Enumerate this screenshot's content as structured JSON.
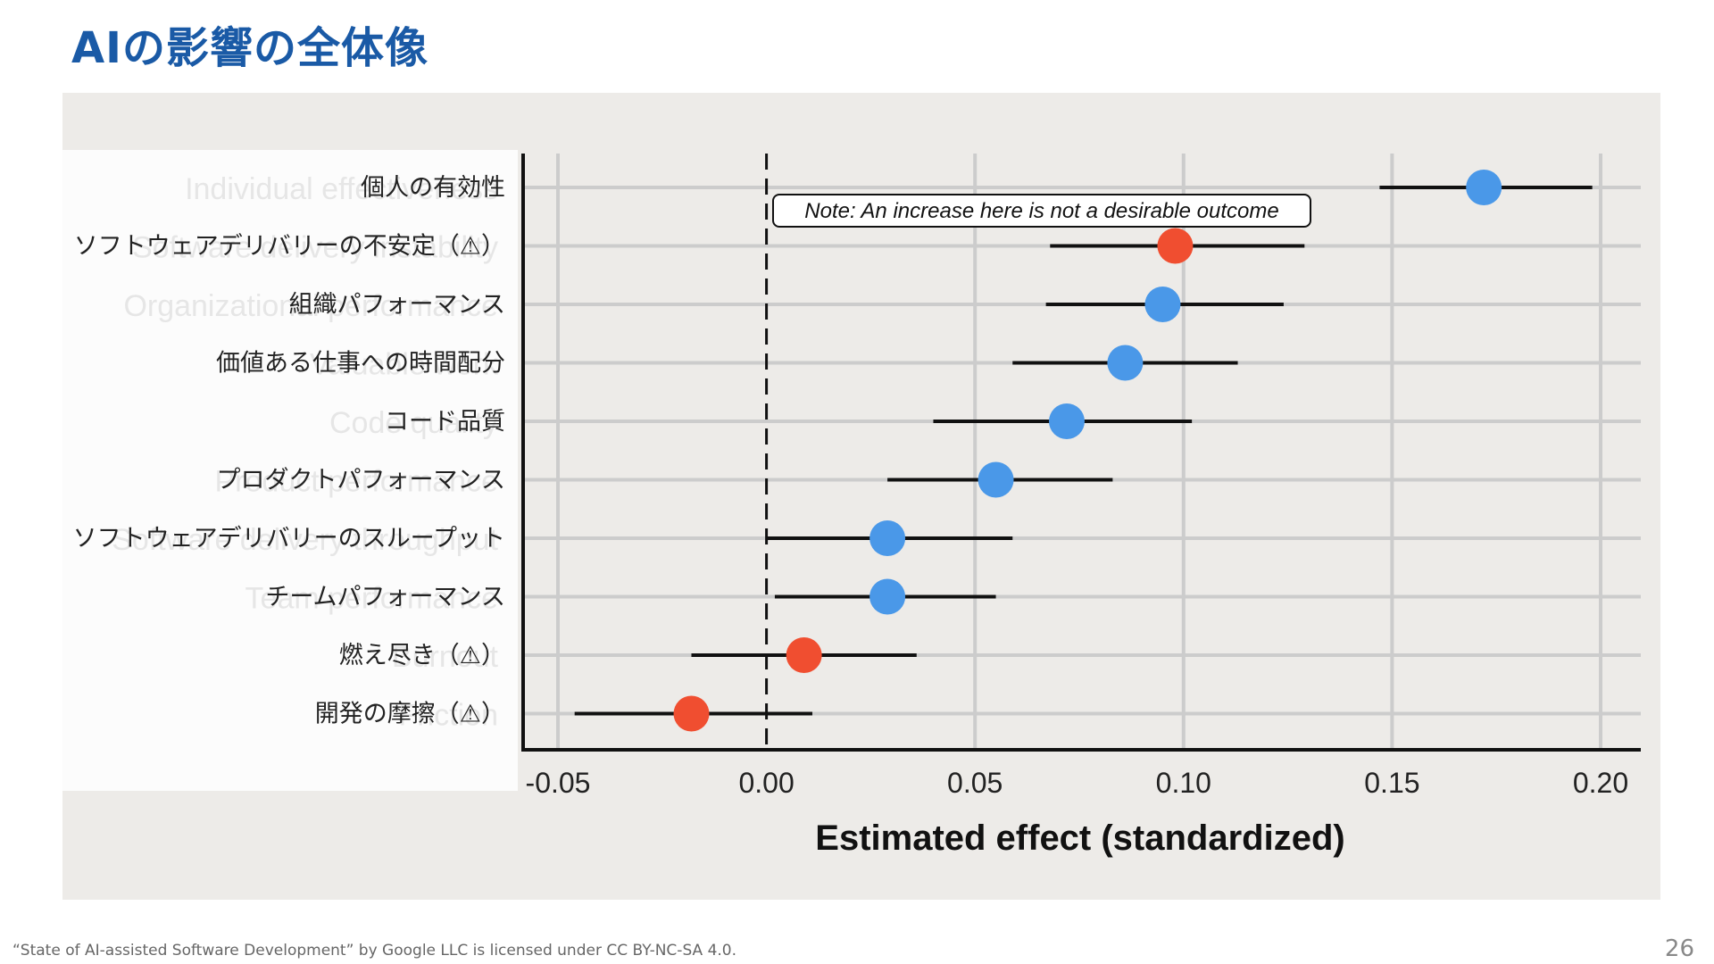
{
  "slide": {
    "title": "AIの影響の全体像",
    "footer": "“State of AI-assisted Software Development” by Google LLC is licensed under CC BY-NC-SA 4.0.",
    "page_number": "26"
  },
  "chart_data": {
    "type": "scatter",
    "subtype": "forest-plot",
    "xlabel": "Estimated effect (standardized)",
    "xlim": [
      -0.06,
      0.21
    ],
    "xticks": [
      "-0.05",
      "0.00",
      "0.05",
      "0.10",
      "0.15",
      "0.20"
    ],
    "xtick_values": [
      -0.05,
      0.0,
      0.05,
      0.1,
      0.15,
      0.2
    ],
    "reference_line": 0.0,
    "grid": true,
    "annotation": "Note: An increase here is not a desirable outcome",
    "colors": {
      "positive": "#4a98e8",
      "negative": "#f04e30",
      "background": "#edebe8",
      "grid": "#cccccc",
      "errorbar": "#111111"
    },
    "rows": [
      {
        "label": "個人の有効性",
        "ghost": "Individual effectiveness",
        "estimate": 0.172,
        "low": 0.147,
        "high": 0.198,
        "kind": "positive"
      },
      {
        "label": "ソフトウェアデリバリーの不安定（⚠）",
        "ghost": "Software delivery instability",
        "estimate": 0.098,
        "low": 0.068,
        "high": 0.129,
        "kind": "negative"
      },
      {
        "label": "組織パフォーマンス",
        "ghost": "Organizational performance",
        "estimate": 0.095,
        "low": 0.067,
        "high": 0.124,
        "kind": "positive"
      },
      {
        "label": "価値ある仕事への時間配分",
        "ghost": "Valuable work",
        "estimate": 0.086,
        "low": 0.059,
        "high": 0.113,
        "kind": "positive"
      },
      {
        "label": "コード品質",
        "ghost": "Code quality",
        "estimate": 0.072,
        "low": 0.04,
        "high": 0.102,
        "kind": "positive"
      },
      {
        "label": "プロダクトパフォーマンス",
        "ghost": "Product performance",
        "estimate": 0.055,
        "low": 0.029,
        "high": 0.083,
        "kind": "positive"
      },
      {
        "label": "ソフトウェアデリバリーのスループット",
        "ghost": "Software delivery throughput",
        "estimate": 0.029,
        "low": 0.0,
        "high": 0.059,
        "kind": "positive"
      },
      {
        "label": "チームパフォーマンス",
        "ghost": "Team performance",
        "estimate": 0.029,
        "low": 0.002,
        "high": 0.055,
        "kind": "positive"
      },
      {
        "label": "燃え尽き（⚠）",
        "ghost": "Burnout",
        "estimate": 0.009,
        "low": -0.018,
        "high": 0.036,
        "kind": "negative"
      },
      {
        "label": "開発の摩擦（⚠）",
        "ghost": "Friction",
        "estimate": -0.018,
        "low": -0.046,
        "high": 0.011,
        "kind": "negative"
      }
    ]
  }
}
